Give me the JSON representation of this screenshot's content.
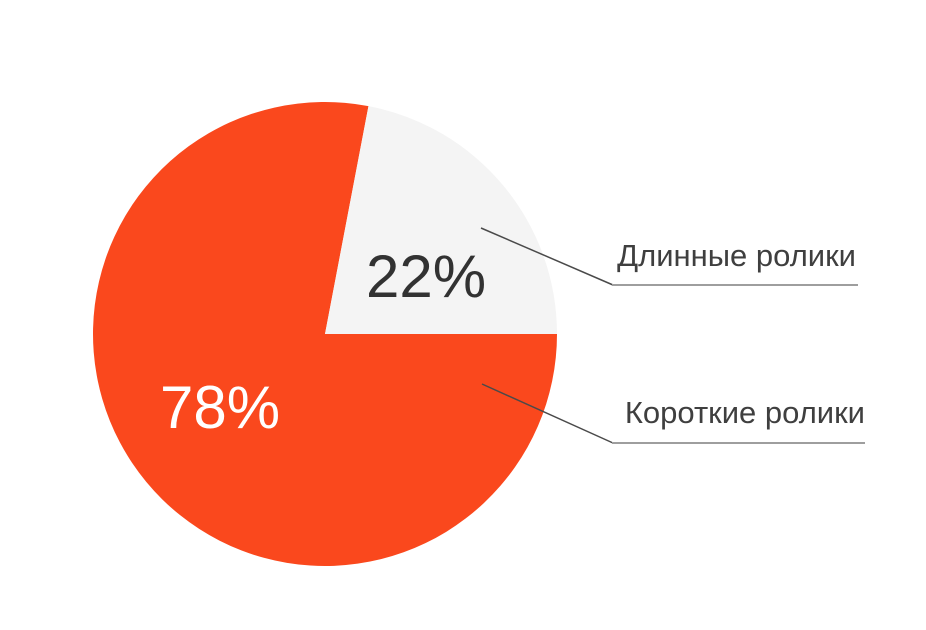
{
  "chart_data": {
    "type": "pie",
    "title": "",
    "background": "#FFFFFF",
    "start_angle_deg": 90,
    "direction": "clockwise",
    "legend_position": "right-callouts",
    "slices": [
      {
        "label": "Короткие ролики",
        "value": 78,
        "display": "78%",
        "color": "#FA481D",
        "value_label_color": "#FFFFFF"
      },
      {
        "label": "Длинные ролики",
        "value": 22,
        "display": "22%",
        "color": "#F4F4F4",
        "value_label_color": "#323232"
      }
    ]
  },
  "styles": {
    "connector_diagonal_color": "#4A4A4A",
    "connector_baseline_color": "#9E9E9E",
    "callout_label_color": "#3F3F3F"
  }
}
